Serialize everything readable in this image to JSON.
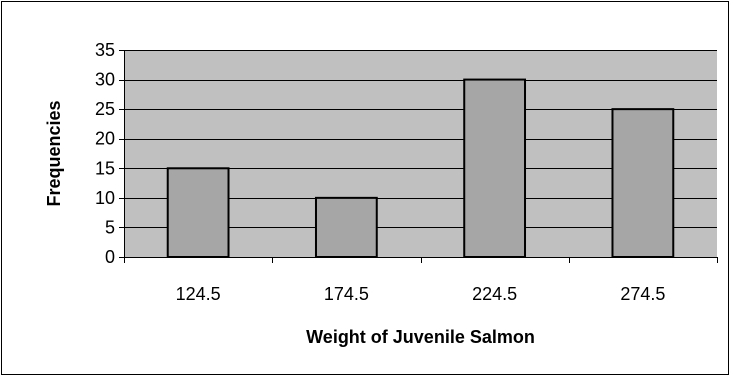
{
  "chart_data": {
    "type": "bar",
    "title": "",
    "xlabel": "Weight of Juvenile Salmon",
    "ylabel": "Frequencies",
    "categories": [
      "124.5",
      "174.5",
      "224.5",
      "274.5"
    ],
    "values": [
      15,
      10,
      30,
      25
    ],
    "ylim": [
      0,
      35
    ],
    "yticks": [
      0,
      5,
      10,
      15,
      20,
      25,
      30,
      35
    ],
    "grid": true,
    "legend": "none",
    "colors": {
      "plot_background": "#c0c0c0",
      "bar_fill": "#a6a6a6",
      "bar_stroke": "#000000",
      "gridline": "#000000"
    }
  }
}
